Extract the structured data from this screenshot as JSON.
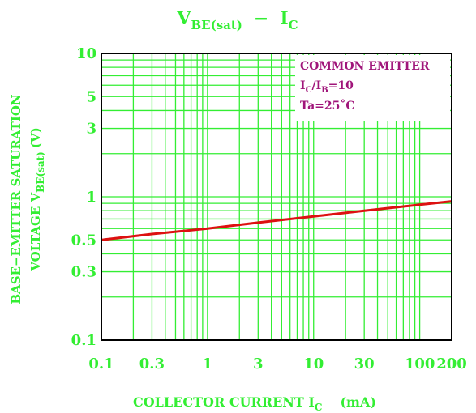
{
  "chart_data": {
    "type": "line",
    "title": {
      "main": "V",
      "sub": "BE(sat)",
      "sep": "−",
      "main2": "I",
      "sub2": "C"
    },
    "xlabel": {
      "pre": "COLLECTOR CURRENT I",
      "sub": "C",
      "post": "(mA)"
    },
    "ylabel": {
      "line1": "BASE−EMITTER  SATURATION",
      "line2_pre": "VOLTAGE V",
      "line2_sub": "BE(sat)",
      "line2_post": "(V)"
    },
    "xscale": "log",
    "yscale": "log",
    "xlim": [
      0.1,
      200
    ],
    "ylim": [
      0.1,
      10
    ],
    "x_ticks": [
      0.1,
      0.3,
      1,
      3,
      10,
      30,
      100,
      200
    ],
    "x_tick_labels": [
      "0.1",
      "0.3",
      "1",
      "3",
      "10",
      "30",
      "100",
      "200"
    ],
    "y_ticks": [
      0.1,
      0.3,
      0.5,
      1,
      3,
      5,
      10
    ],
    "y_tick_labels": [
      "0.1",
      "0.3",
      "0.5",
      "1",
      "3",
      "5",
      "10"
    ],
    "grid": true,
    "legend_placement": "top-right",
    "annotation": {
      "line1": "COMMON EMITTER",
      "line2": {
        "a": "I",
        "a_sub": "C",
        "b": "/I",
        "b_sub": "B",
        "c": "=10"
      },
      "line3": "Ta=25˚C"
    },
    "series": [
      {
        "x": [
          0.1,
          0.3,
          1,
          3,
          10,
          30,
          100,
          200
        ],
        "y": [
          0.5,
          0.55,
          0.6,
          0.66,
          0.73,
          0.8,
          0.88,
          0.93
        ]
      }
    ],
    "colors": {
      "text": "#33ee33",
      "grid": "#33ee33",
      "line": "#dd1111",
      "annotation": "#a0157a",
      "frame": "#000000"
    }
  }
}
